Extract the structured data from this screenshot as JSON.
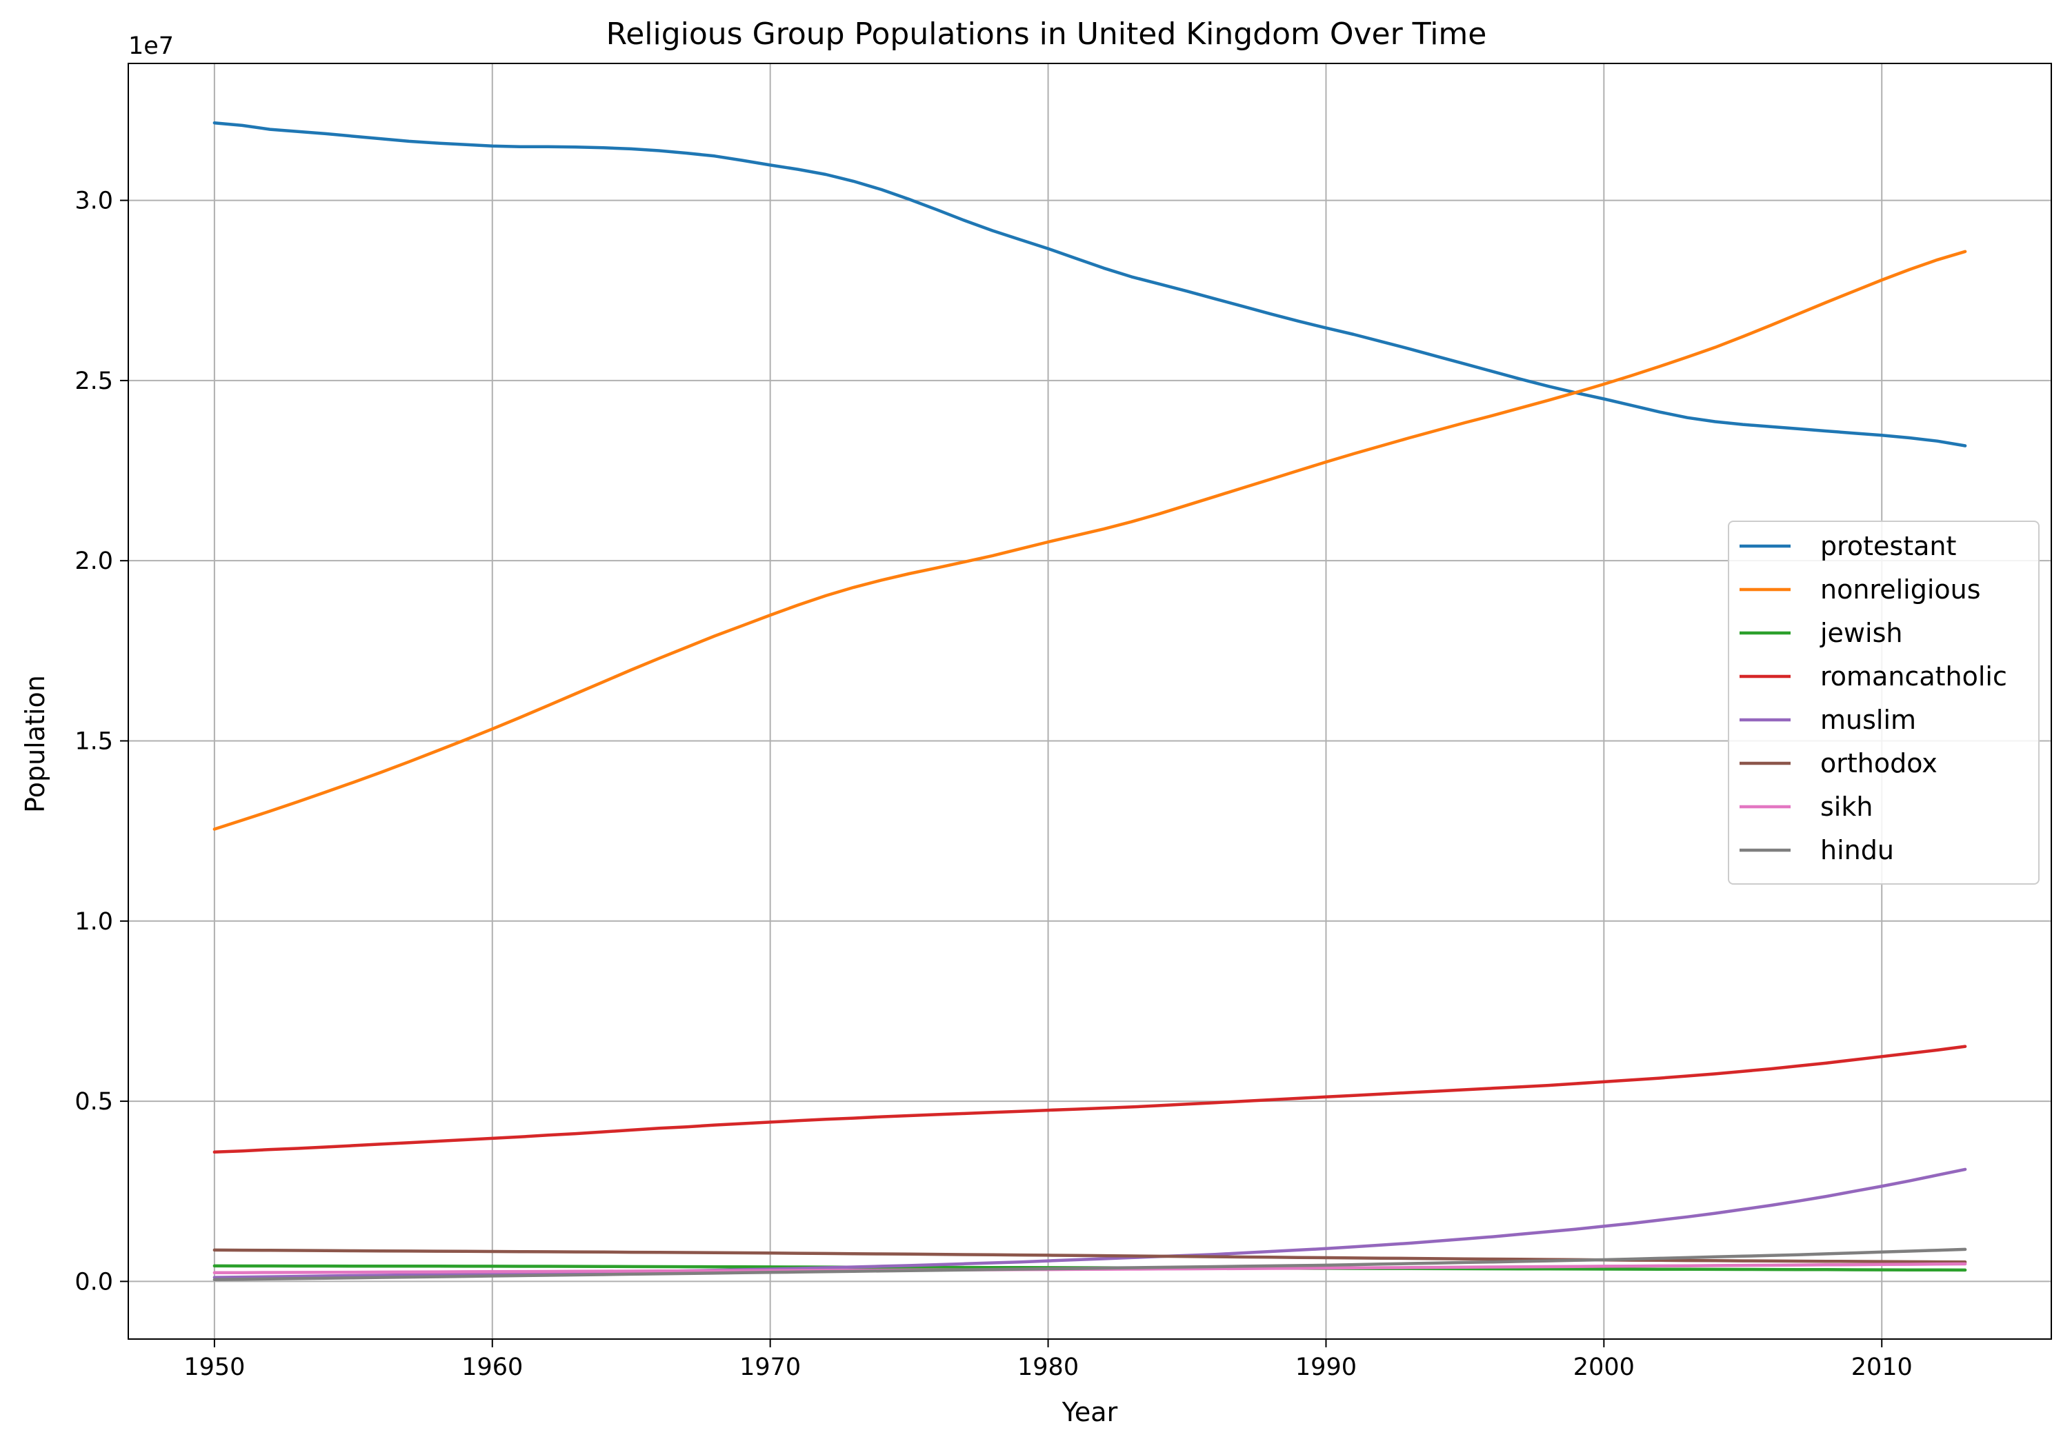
{
  "chart_data": {
    "type": "line",
    "title": "Religious Group Populations in United Kingdom Over Time",
    "xlabel": "Year",
    "ylabel": "Population",
    "y_offset_label": "1e7",
    "xlim": [
      1946.9,
      2016.1
    ],
    "ylim": [
      -1600000,
      33800000
    ],
    "x_ticks": [
      1950,
      1960,
      1970,
      1980,
      1990,
      2000,
      2010
    ],
    "y_ticks": [
      0,
      5000000,
      10000000,
      15000000,
      20000000,
      25000000,
      30000000
    ],
    "y_tick_labels": [
      "0.0",
      "0.5",
      "1.0",
      "1.5",
      "2.0",
      "2.5",
      "3.0"
    ],
    "grid": true,
    "legend_position": "center-right",
    "x": [
      1950,
      1951,
      1952,
      1953,
      1954,
      1955,
      1956,
      1957,
      1958,
      1959,
      1960,
      1961,
      1962,
      1963,
      1964,
      1965,
      1966,
      1967,
      1968,
      1969,
      1970,
      1971,
      1972,
      1973,
      1974,
      1975,
      1976,
      1977,
      1978,
      1979,
      1980,
      1981,
      1982,
      1983,
      1984,
      1985,
      1986,
      1987,
      1988,
      1989,
      1990,
      1991,
      1992,
      1993,
      1994,
      1995,
      1996,
      1997,
      1998,
      1999,
      2000,
      2001,
      2002,
      2003,
      2004,
      2005,
      2006,
      2007,
      2008,
      2009,
      2010,
      2011,
      2012,
      2013
    ],
    "series": [
      {
        "name": "protestant",
        "color": "#1f77b4",
        "values": [
          32150000,
          32080000,
          31970000,
          31910000,
          31850000,
          31780000,
          31710000,
          31640000,
          31590000,
          31550000,
          31510000,
          31490000,
          31490000,
          31480000,
          31460000,
          31430000,
          31380000,
          31310000,
          31230000,
          31110000,
          30980000,
          30860000,
          30720000,
          30530000,
          30300000,
          30030000,
          29740000,
          29440000,
          29160000,
          28910000,
          28660000,
          28390000,
          28120000,
          27880000,
          27680000,
          27480000,
          27270000,
          27060000,
          26850000,
          26650000,
          26460000,
          26280000,
          26080000,
          25880000,
          25670000,
          25460000,
          25250000,
          25040000,
          24840000,
          24660000,
          24490000,
          24310000,
          24130000,
          23970000,
          23860000,
          23780000,
          23720000,
          23660000,
          23600000,
          23540000,
          23480000,
          23410000,
          23320000,
          23190000
        ]
      },
      {
        "name": "nonreligious",
        "color": "#ff7f0e",
        "values": [
          12550000,
          12800000,
          13050000,
          13310000,
          13580000,
          13850000,
          14130000,
          14420000,
          14720000,
          15020000,
          15330000,
          15650000,
          15980000,
          16310000,
          16640000,
          16970000,
          17290000,
          17600000,
          17910000,
          18200000,
          18490000,
          18770000,
          19030000,
          19260000,
          19460000,
          19640000,
          19800000,
          19970000,
          20140000,
          20330000,
          20520000,
          20700000,
          20880000,
          21080000,
          21300000,
          21540000,
          21780000,
          22020000,
          22260000,
          22500000,
          22740000,
          22970000,
          23190000,
          23410000,
          23620000,
          23830000,
          24030000,
          24240000,
          24450000,
          24670000,
          24900000,
          25140000,
          25390000,
          25650000,
          25920000,
          26220000,
          26530000,
          26850000,
          27170000,
          27480000,
          27790000,
          28080000,
          28350000,
          28580000
        ]
      },
      {
        "name": "jewish",
        "color": "#2ca02c",
        "values": [
          430000,
          429000,
          428000,
          427000,
          426000,
          425000,
          424000,
          423000,
          422000,
          421000,
          420000,
          419000,
          418000,
          416000,
          414000,
          412000,
          410000,
          408000,
          406000,
          404000,
          402000,
          400000,
          398000,
          396000,
          394000,
          392000,
          390000,
          388000,
          386000,
          384000,
          382000,
          380000,
          378000,
          376000,
          374000,
          372000,
          370000,
          368000,
          366000,
          364000,
          362000,
          360000,
          358000,
          356000,
          354000,
          352000,
          350000,
          348000,
          346000,
          344000,
          342000,
          340000,
          338000,
          336000,
          334000,
          332000,
          330000,
          328000,
          326000,
          324000,
          322000,
          320000,
          318000,
          316000
        ]
      },
      {
        "name": "romancatholic",
        "color": "#d62728",
        "values": [
          3590000,
          3620000,
          3660000,
          3690000,
          3730000,
          3770000,
          3810000,
          3850000,
          3890000,
          3930000,
          3970000,
          4010000,
          4060000,
          4100000,
          4150000,
          4200000,
          4250000,
          4290000,
          4340000,
          4380000,
          4420000,
          4460000,
          4500000,
          4530000,
          4570000,
          4600000,
          4630000,
          4660000,
          4690000,
          4720000,
          4750000,
          4780000,
          4810000,
          4840000,
          4880000,
          4920000,
          4960000,
          5000000,
          5040000,
          5080000,
          5120000,
          5160000,
          5200000,
          5240000,
          5280000,
          5320000,
          5360000,
          5400000,
          5440000,
          5490000,
          5540000,
          5590000,
          5640000,
          5700000,
          5760000,
          5830000,
          5900000,
          5980000,
          6060000,
          6150000,
          6240000,
          6330000,
          6420000,
          6520000
        ]
      },
      {
        "name": "muslim",
        "color": "#9467bd",
        "values": [
          110000,
          120000,
          130000,
          140000,
          150000,
          160000,
          170000,
          180000,
          190000,
          200000,
          210000,
          220000,
          230000,
          240000,
          250000,
          265000,
          280000,
          295000,
          310000,
          325000,
          340000,
          360000,
          380000,
          400000,
          420000,
          440000,
          465000,
          490000,
          515000,
          540000,
          570000,
          600000,
          630000,
          660000,
          690000,
          720000,
          750000,
          790000,
          830000,
          870000,
          910000,
          960000,
          1010000,
          1060000,
          1120000,
          1180000,
          1240000,
          1310000,
          1380000,
          1450000,
          1530000,
          1610000,
          1700000,
          1790000,
          1890000,
          2000000,
          2110000,
          2230000,
          2360000,
          2500000,
          2640000,
          2790000,
          2950000,
          3110000
        ]
      },
      {
        "name": "orthodox",
        "color": "#8c564b",
        "values": [
          870000,
          866000,
          862000,
          858000,
          854000,
          850000,
          846000,
          842000,
          838000,
          834000,
          830000,
          826000,
          822000,
          818000,
          814000,
          810000,
          806000,
          801000,
          796000,
          791000,
          786000,
          781000,
          775000,
          769000,
          763000,
          757000,
          751000,
          745000,
          739000,
          733000,
          727000,
          720000,
          713000,
          706000,
          699000,
          692000,
          685000,
          678000,
          671000,
          664000,
          657000,
          650000,
          644000,
          638000,
          632000,
          626000,
          620000,
          614000,
          608000,
          602000,
          596000,
          590000,
          585000,
          580000,
          575000,
          570000,
          566000,
          562000,
          558000,
          554000,
          550000,
          546000,
          542000,
          538000
        ]
      },
      {
        "name": "sikh",
        "color": "#e377c2",
        "values": [
          240000,
          243000,
          246000,
          249000,
          252000,
          255000,
          258000,
          261000,
          264000,
          267000,
          270000,
          273000,
          276000,
          279000,
          282000,
          285000,
          288000,
          291000,
          294000,
          297000,
          300000,
          303000,
          306000,
          309000,
          312000,
          315000,
          318000,
          321000,
          324000,
          327000,
          330000,
          334000,
          338000,
          342000,
          346000,
          350000,
          354000,
          358000,
          362000,
          366000,
          370000,
          375000,
          380000,
          385000,
          390000,
          395000,
          400000,
          405000,
          410000,
          415000,
          420000,
          425000,
          430000,
          435000,
          440000,
          445000,
          450000,
          455000,
          460000,
          465000,
          470000,
          475000,
          480000,
          485000
        ]
      },
      {
        "name": "hindu",
        "color": "#7f7f7f",
        "values": [
          50000,
          60000,
          70000,
          80000,
          90000,
          100000,
          110000,
          120000,
          130000,
          140000,
          150000,
          160000,
          170000,
          180000,
          190000,
          200000,
          210000,
          220000,
          230000,
          240000,
          250000,
          260000,
          270000,
          280000,
          290000,
          300000,
          310000,
          320000,
          330000,
          340000,
          350000,
          360000,
          370000,
          380000,
          390000,
          400000,
          410000,
          420000,
          430000,
          440000,
          450000,
          465000,
          480000,
          495000,
          510000,
          525000,
          540000,
          555000,
          570000,
          585000,
          600000,
          620000,
          640000,
          660000,
          680000,
          700000,
          720000,
          740000,
          765000,
          790000,
          815000,
          840000,
          865000,
          890000
        ]
      }
    ]
  }
}
